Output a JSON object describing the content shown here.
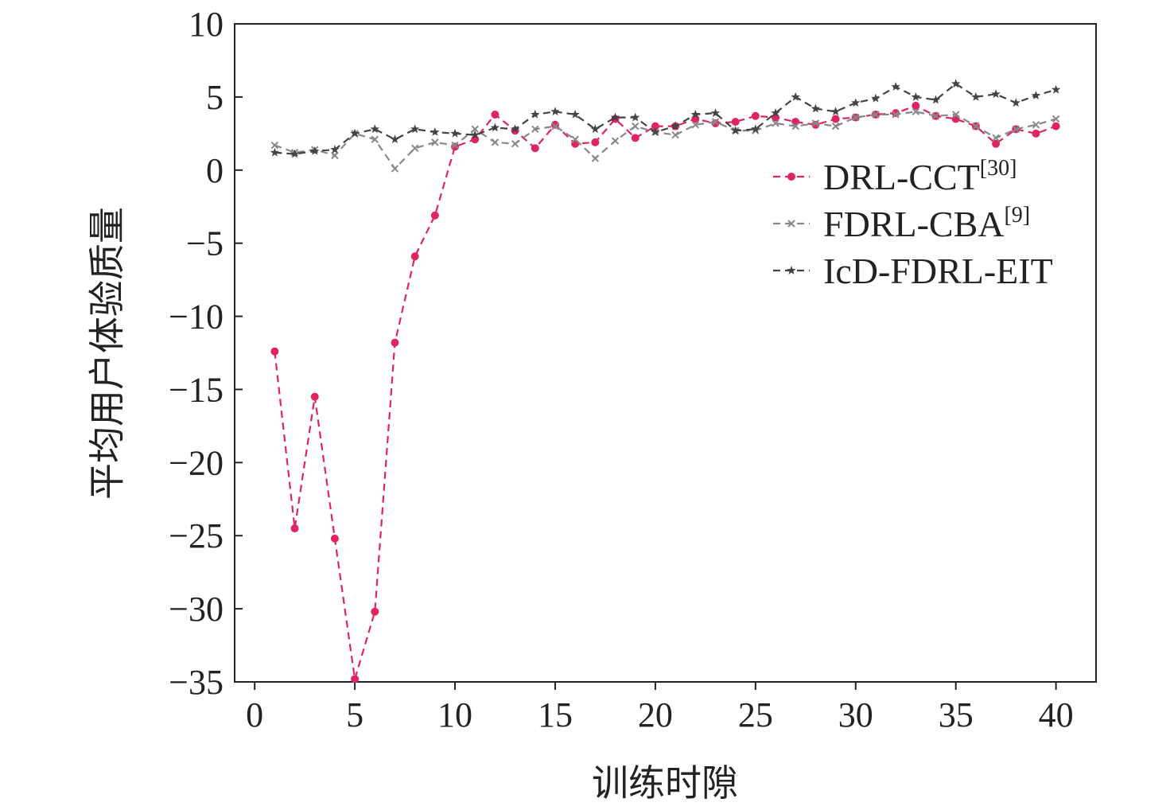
{
  "chart_data": {
    "type": "line",
    "xlabel": "训练时隙",
    "ylabel": "平均用户体验质量",
    "x": [
      1,
      2,
      3,
      4,
      5,
      6,
      7,
      8,
      9,
      10,
      11,
      12,
      13,
      14,
      15,
      16,
      17,
      18,
      19,
      20,
      21,
      22,
      23,
      24,
      25,
      26,
      27,
      28,
      29,
      30,
      31,
      32,
      33,
      34,
      35,
      36,
      37,
      38,
      39,
      40
    ],
    "series": [
      {
        "name": "DRL-CCT",
        "ref": "[30]",
        "color": "#e0245e",
        "marker": "circle",
        "values": [
          -12.4,
          -24.5,
          -15.5,
          -25.2,
          -34.8,
          -30.2,
          -11.8,
          -5.9,
          -3.1,
          1.6,
          2.1,
          3.8,
          2.7,
          1.5,
          3.1,
          1.8,
          1.9,
          3.5,
          2.2,
          3.0,
          3.0,
          3.5,
          3.2,
          3.3,
          3.7,
          3.6,
          3.3,
          3.1,
          3.5,
          3.6,
          3.8,
          3.9,
          4.4,
          3.7,
          3.5,
          3.0,
          1.8,
          2.8,
          2.5,
          3.0
        ]
      },
      {
        "name": "FDRL-CBA",
        "ref": "[9]",
        "color": "#888888",
        "marker": "x",
        "values": [
          1.7,
          1.2,
          1.4,
          1.0,
          2.5,
          2.1,
          0.1,
          1.5,
          1.9,
          1.7,
          2.8,
          1.9,
          1.8,
          2.8,
          3.0,
          2.1,
          0.8,
          2.0,
          3.0,
          2.6,
          2.4,
          3.1,
          3.3,
          2.7,
          2.7,
          3.2,
          3.0,
          3.2,
          3.0,
          3.6,
          3.8,
          3.8,
          4.0,
          3.7,
          3.8,
          3.0,
          2.2,
          2.8,
          3.1,
          3.5
        ]
      },
      {
        "name": "IcD-FDRL-EIT",
        "color": "#444444",
        "marker": "star",
        "values": [
          1.2,
          1.1,
          1.3,
          1.4,
          2.5,
          2.8,
          2.1,
          2.8,
          2.6,
          2.5,
          2.4,
          2.9,
          2.8,
          3.8,
          4.0,
          3.8,
          2.8,
          3.6,
          3.6,
          2.6,
          3.0,
          3.8,
          3.9,
          2.7,
          2.8,
          3.9,
          5.0,
          4.2,
          4.0,
          4.6,
          4.9,
          5.7,
          5.0,
          4.8,
          5.9,
          5.0,
          5.2,
          4.6,
          5.1,
          5.5
        ]
      }
    ],
    "xlim": [
      -1,
      42
    ],
    "ylim": [
      -35,
      10
    ],
    "xticks": [
      0,
      5,
      10,
      15,
      20,
      25,
      30,
      35,
      40
    ],
    "yticks": [
      {
        "value": -35,
        "label": "−35"
      },
      {
        "value": -30,
        "label": "−30"
      },
      {
        "value": -25,
        "label": "−25"
      },
      {
        "value": -20,
        "label": "−20"
      },
      {
        "value": -15,
        "label": "−15"
      },
      {
        "value": -10,
        "label": "−10"
      },
      {
        "value": -5,
        "label": "−5"
      },
      0,
      5,
      10
    ],
    "legend": "right"
  }
}
